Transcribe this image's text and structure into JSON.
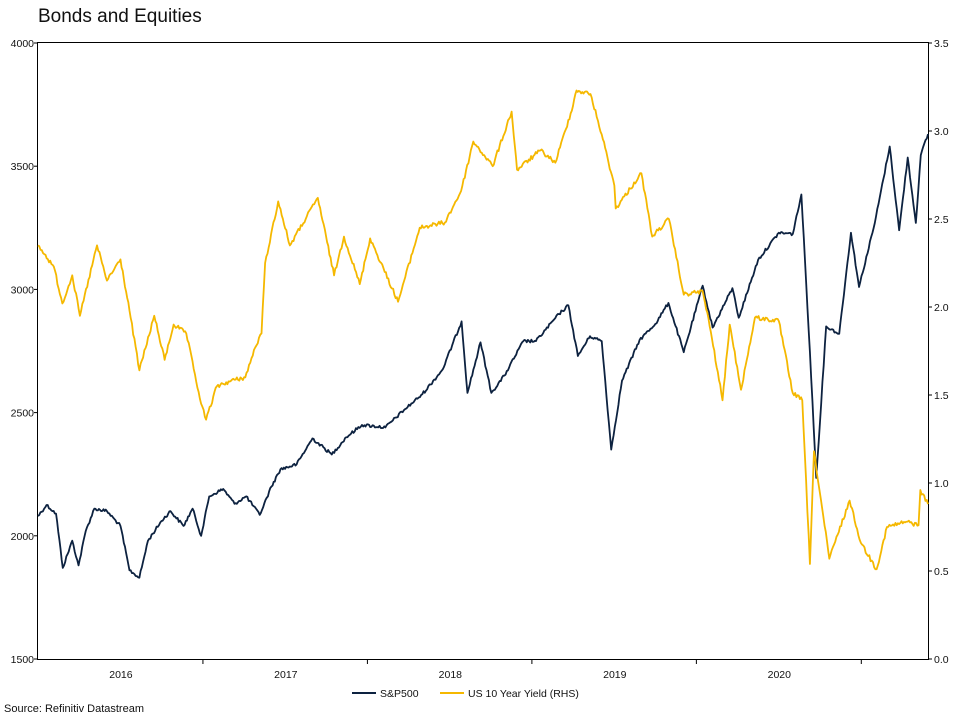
{
  "chart_data": {
    "type": "line",
    "title": "Bonds and Equities",
    "source": "Source: Refinitiv Datastream",
    "x_range": [
      "2015-07-01",
      "2020-11-26"
    ],
    "x_tick_labels": [
      {
        "label": "2016",
        "x": "2016-01-01"
      },
      {
        "label": "2017",
        "x": "2017-01-01"
      },
      {
        "label": "2018",
        "x": "2018-01-01"
      },
      {
        "label": "2019",
        "x": "2019-01-01"
      },
      {
        "label": "2020",
        "x": "2020-01-01"
      }
    ],
    "x_boundary_ticks": [
      "2016-07-01",
      "2017-07-01",
      "2018-07-01",
      "2019-07-01",
      "2020-07-01"
    ],
    "y_left": {
      "min": 1500,
      "max": 4000,
      "ticks": [
        "1500",
        "2000",
        "2500",
        "3000",
        "3500",
        "4000"
      ]
    },
    "y_right": {
      "min": 0.0,
      "max": 3.5,
      "ticks": [
        "0.0",
        "0.5",
        "1.0",
        "1.5",
        "2.0",
        "2.5",
        "3.0",
        "3.5"
      ]
    },
    "grid": false,
    "legend_position": "bottom-center",
    "series": [
      {
        "name": "S&P500",
        "axis": "left",
        "color": "#0d2240",
        "points": [
          [
            "2015-07-01",
            2080
          ],
          [
            "2015-07-20",
            2125
          ],
          [
            "2015-08-10",
            2090
          ],
          [
            "2015-08-25",
            1870
          ],
          [
            "2015-09-15",
            1980
          ],
          [
            "2015-09-29",
            1880
          ],
          [
            "2015-10-15",
            2020
          ],
          [
            "2015-11-03",
            2110
          ],
          [
            "2015-12-01",
            2100
          ],
          [
            "2015-12-31",
            2040
          ],
          [
            "2016-01-20",
            1860
          ],
          [
            "2016-02-11",
            1830
          ],
          [
            "2016-03-01",
            1980
          ],
          [
            "2016-03-31",
            2060
          ],
          [
            "2016-04-20",
            2100
          ],
          [
            "2016-05-19",
            2040
          ],
          [
            "2016-06-08",
            2110
          ],
          [
            "2016-06-27",
            2000
          ],
          [
            "2016-07-15",
            2160
          ],
          [
            "2016-08-15",
            2190
          ],
          [
            "2016-09-09",
            2130
          ],
          [
            "2016-10-05",
            2160
          ],
          [
            "2016-11-04",
            2085
          ],
          [
            "2016-11-30",
            2200
          ],
          [
            "2016-12-20",
            2270
          ],
          [
            "2017-01-25",
            2290
          ],
          [
            "2017-03-01",
            2395
          ],
          [
            "2017-04-13",
            2330
          ],
          [
            "2017-05-15",
            2400
          ],
          [
            "2017-06-19",
            2450
          ],
          [
            "2017-08-10",
            2440
          ],
          [
            "2017-09-20",
            2510
          ],
          [
            "2017-10-31",
            2575
          ],
          [
            "2017-12-15",
            2675
          ],
          [
            "2018-01-26",
            2870
          ],
          [
            "2018-02-08",
            2580
          ],
          [
            "2018-03-09",
            2785
          ],
          [
            "2018-04-02",
            2580
          ],
          [
            "2018-05-01",
            2650
          ],
          [
            "2018-06-12",
            2790
          ],
          [
            "2018-07-10",
            2790
          ],
          [
            "2018-08-30",
            2900
          ],
          [
            "2018-09-20",
            2935
          ],
          [
            "2018-10-11",
            2730
          ],
          [
            "2018-11-07",
            2810
          ],
          [
            "2018-12-03",
            2790
          ],
          [
            "2018-12-24",
            2350
          ],
          [
            "2019-01-17",
            2630
          ],
          [
            "2019-02-25",
            2795
          ],
          [
            "2019-04-01",
            2860
          ],
          [
            "2019-04-30",
            2945
          ],
          [
            "2019-06-03",
            2745
          ],
          [
            "2019-07-15",
            3015
          ],
          [
            "2019-08-06",
            2845
          ],
          [
            "2019-09-19",
            3005
          ],
          [
            "2019-10-03",
            2885
          ],
          [
            "2019-11-15",
            3120
          ],
          [
            "2019-12-31",
            3230
          ],
          [
            "2020-01-31",
            3225
          ],
          [
            "2020-02-19",
            3385
          ],
          [
            "2020-03-09",
            2745
          ],
          [
            "2020-03-23",
            2235
          ],
          [
            "2020-04-14",
            2850
          ],
          [
            "2020-05-13",
            2820
          ],
          [
            "2020-06-08",
            3230
          ],
          [
            "2020-06-26",
            3010
          ],
          [
            "2020-07-31",
            3270
          ],
          [
            "2020-09-02",
            3580
          ],
          [
            "2020-09-23",
            3240
          ],
          [
            "2020-10-12",
            3535
          ],
          [
            "2020-10-30",
            3270
          ],
          [
            "2020-11-10",
            3545
          ],
          [
            "2020-11-26",
            3630
          ]
        ]
      },
      {
        "name": "US 10 Year Yield (RHS)",
        "axis": "right",
        "color": "#f5b800",
        "points": [
          [
            "2015-07-01",
            2.35
          ],
          [
            "2015-07-15",
            2.3
          ],
          [
            "2015-08-05",
            2.23
          ],
          [
            "2015-08-24",
            2.02
          ],
          [
            "2015-09-15",
            2.18
          ],
          [
            "2015-10-02",
            1.95
          ],
          [
            "2015-11-09",
            2.35
          ],
          [
            "2015-12-01",
            2.15
          ],
          [
            "2015-12-31",
            2.27
          ],
          [
            "2016-01-20",
            1.98
          ],
          [
            "2016-02-11",
            1.64
          ],
          [
            "2016-03-15",
            1.95
          ],
          [
            "2016-04-07",
            1.7
          ],
          [
            "2016-04-27",
            1.9
          ],
          [
            "2016-05-25",
            1.85
          ],
          [
            "2016-06-27",
            1.45
          ],
          [
            "2016-07-08",
            1.36
          ],
          [
            "2016-08-01",
            1.55
          ],
          [
            "2016-09-01",
            1.58
          ],
          [
            "2016-10-03",
            1.6
          ],
          [
            "2016-10-25",
            1.77
          ],
          [
            "2016-11-08",
            1.85
          ],
          [
            "2016-11-16",
            2.25
          ],
          [
            "2016-12-15",
            2.6
          ],
          [
            "2017-01-10",
            2.35
          ],
          [
            "2017-03-13",
            2.62
          ],
          [
            "2017-04-18",
            2.18
          ],
          [
            "2017-05-10",
            2.4
          ],
          [
            "2017-06-14",
            2.13
          ],
          [
            "2017-07-07",
            2.39
          ],
          [
            "2017-09-07",
            2.03
          ],
          [
            "2017-10-25",
            2.45
          ],
          [
            "2017-12-20",
            2.48
          ],
          [
            "2018-01-25",
            2.66
          ],
          [
            "2018-02-21",
            2.94
          ],
          [
            "2018-04-05",
            2.8
          ],
          [
            "2018-05-17",
            3.11
          ],
          [
            "2018-05-29",
            2.78
          ],
          [
            "2018-07-20",
            2.89
          ],
          [
            "2018-08-22",
            2.82
          ],
          [
            "2018-09-25",
            3.1
          ],
          [
            "2018-10-08",
            3.23
          ],
          [
            "2018-11-08",
            3.21
          ],
          [
            "2018-12-03",
            2.98
          ],
          [
            "2018-12-31",
            2.69
          ],
          [
            "2019-01-03",
            2.56
          ],
          [
            "2019-03-01",
            2.76
          ],
          [
            "2019-03-25",
            2.4
          ],
          [
            "2019-05-01",
            2.5
          ],
          [
            "2019-06-03",
            2.07
          ],
          [
            "2019-07-15",
            2.09
          ],
          [
            "2019-08-02",
            1.86
          ],
          [
            "2019-08-28",
            1.47
          ],
          [
            "2019-09-13",
            1.9
          ],
          [
            "2019-10-08",
            1.53
          ],
          [
            "2019-11-08",
            1.94
          ],
          [
            "2019-12-31",
            1.92
          ],
          [
            "2020-01-31",
            1.51
          ],
          [
            "2020-02-21",
            1.47
          ],
          [
            "2020-03-09",
            0.54
          ],
          [
            "2020-03-18",
            1.18
          ],
          [
            "2020-04-21",
            0.57
          ],
          [
            "2020-06-05",
            0.9
          ],
          [
            "2020-06-30",
            0.66
          ],
          [
            "2020-08-04",
            0.51
          ],
          [
            "2020-08-27",
            0.75
          ],
          [
            "2020-10-09",
            0.78
          ],
          [
            "2020-11-05",
            0.76
          ],
          [
            "2020-11-09",
            0.96
          ],
          [
            "2020-11-26",
            0.88
          ]
        ]
      }
    ]
  }
}
